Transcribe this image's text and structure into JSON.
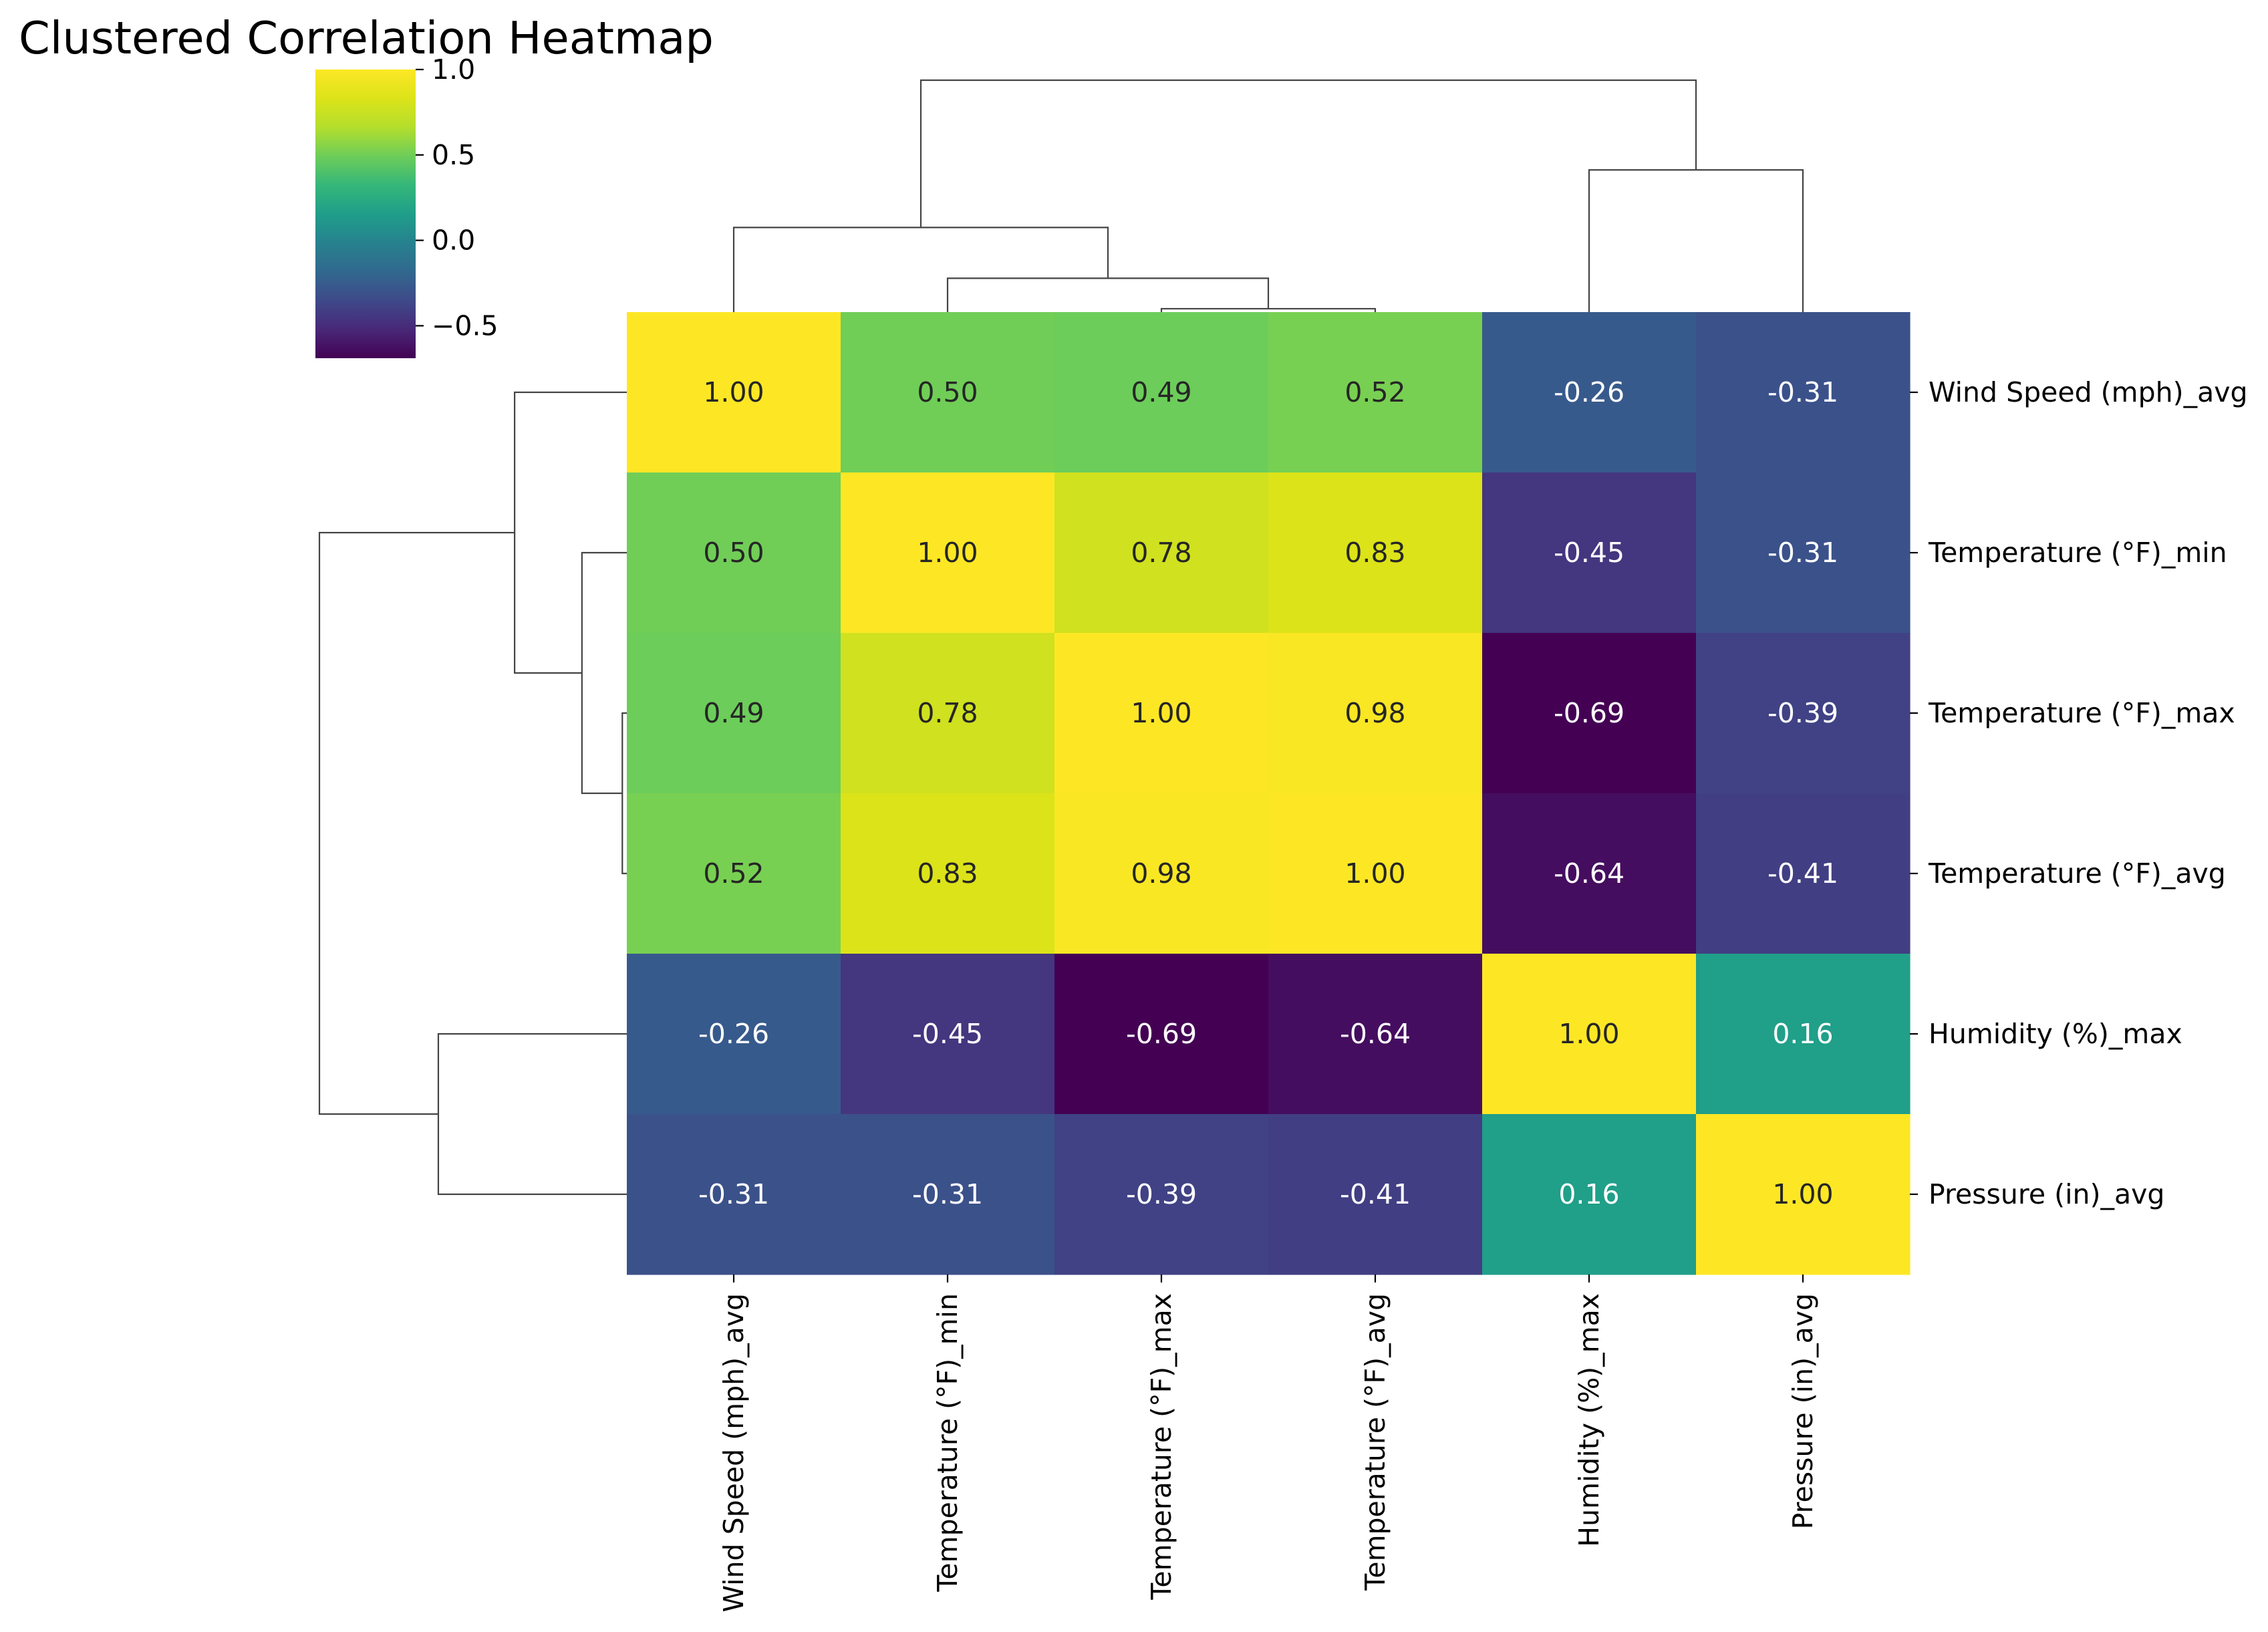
{
  "chart_data": {
    "type": "heatmap",
    "title": "Clustered Correlation Heatmap",
    "subtitle": "",
    "xlabel": "",
    "ylabel": "",
    "variables": [
      "Wind Speed (mph)_avg",
      "Temperature (°F)_min",
      "Temperature (°F)_max",
      "Temperature (°F)_avg",
      "Humidity (%)_max",
      "Pressure (in)_avg"
    ],
    "matrix": [
      [
        1.0,
        0.5,
        0.49,
        0.52,
        -0.26,
        -0.31
      ],
      [
        0.5,
        1.0,
        0.78,
        0.83,
        -0.45,
        -0.31
      ],
      [
        0.49,
        0.78,
        1.0,
        0.98,
        -0.69,
        -0.39
      ],
      [
        0.52,
        0.83,
        0.98,
        1.0,
        -0.64,
        -0.41
      ],
      [
        -0.26,
        -0.45,
        -0.69,
        -0.64,
        1.0,
        0.16
      ],
      [
        -0.31,
        -0.31,
        -0.39,
        -0.41,
        0.16,
        1.0
      ]
    ],
    "value_format": "0.00",
    "colormap": "viridis",
    "color_range": [
      -0.69,
      1.0
    ],
    "colorbar": {
      "ticks": [
        1.0,
        0.5,
        0.0,
        -0.5
      ],
      "tick_labels": [
        "1.0",
        "0.5",
        "0.0",
        "−0.5"
      ],
      "placement": "top-left"
    },
    "dendrogram": {
      "method": "hierarchical",
      "leaf_order": [
        0,
        1,
        2,
        3,
        4,
        5
      ],
      "merges": [
        {
          "left": "leaf:2",
          "right": "leaf:3",
          "height": 0.02
        },
        {
          "left": "leaf:1",
          "right": "node:0",
          "height": 0.2
        },
        {
          "left": "leaf:0",
          "right": "node:1",
          "height": 0.5
        },
        {
          "left": "leaf:4",
          "right": "leaf:5",
          "height": 0.84
        },
        {
          "left": "node:2",
          "right": "node:3",
          "height": 1.37
        }
      ]
    },
    "grid": false,
    "legend": "none"
  },
  "colors": {
    "background": "#ffffff",
    "dendrogram": "#444444",
    "light_text": "#ffffff",
    "dark_text": "#262626"
  }
}
